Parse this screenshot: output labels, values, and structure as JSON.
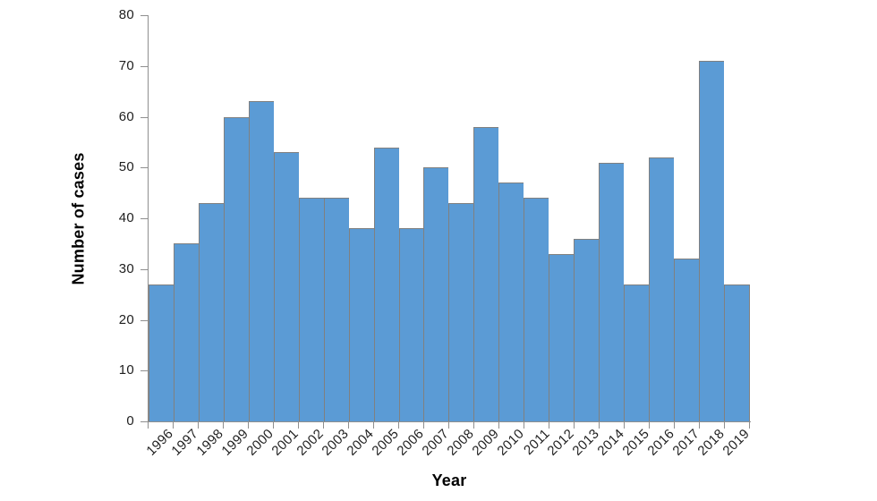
{
  "chart_data": {
    "type": "bar",
    "title": "",
    "xlabel": "Year",
    "ylabel": "Number of cases",
    "categories": [
      "1996",
      "1997",
      "1998",
      "1999",
      "2000",
      "2001",
      "2002",
      "2003",
      "2004",
      "2005",
      "2006",
      "2007",
      "2008",
      "2009",
      "2010",
      "2011",
      "2012",
      "2013",
      "2014",
      "2015",
      "2016",
      "2017",
      "2018",
      "2019"
    ],
    "values": [
      27,
      35,
      43,
      60,
      63,
      53,
      44,
      44,
      38,
      54,
      38,
      50,
      43,
      58,
      47,
      44,
      33,
      36,
      51,
      27,
      52,
      32,
      71,
      27
    ],
    "ylim": [
      0,
      80
    ],
    "yticks": [
      0,
      10,
      20,
      30,
      40,
      50,
      60,
      70,
      80
    ],
    "grid": false,
    "legend_position": "none",
    "bar_gap": 0,
    "colors": {
      "bar_fill": "#5B9BD5",
      "bar_border": "#808080",
      "axis_line": "#8f8f8f",
      "text": "#1f1f1f"
    }
  }
}
